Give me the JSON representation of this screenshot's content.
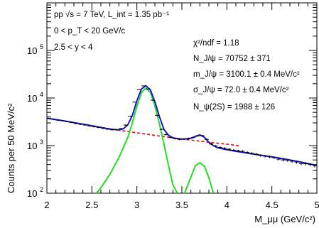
{
  "chart_data": {
    "type": "line",
    "xlabel": "M_μμ (GeV/c²)",
    "ylabel": "Counts per 50 MeV/c²",
    "xlim": [
      2,
      5
    ],
    "ylim": [
      100,
      1000000
    ],
    "y_scale": "log",
    "x_ticks": [
      "2",
      "2.5",
      "3",
      "3.5",
      "4",
      "4.5",
      "5"
    ],
    "y_tick_exponents": [
      "2",
      "3",
      "4",
      "5"
    ],
    "legend_text": {
      "line1": "pp √s = 7 TeV, L_int = 1.35 pb⁻¹",
      "line2": "0 < p_T < 20 GeV/c",
      "line3": "2.5 < y < 4"
    },
    "fit_results": {
      "chi2": "χ²/ndf = 1.18",
      "njpsi": "N_J/ψ = 70752 ± 371",
      "mjpsi": "m_J/ψ = 3100.1 ± 0.4 MeV/c²",
      "sigma": "σ_J/ψ = 72.0 ± 0.4 MeV/c²",
      "npsi2s": "N_ψ(2S) = 1988 ± 126"
    },
    "series": [
      {
        "key": "data",
        "color": "#000000",
        "x": [
          2.025,
          2.075,
          2.125,
          2.175,
          2.225,
          2.275,
          2.325,
          2.375,
          2.425,
          2.475,
          2.525,
          2.575,
          2.625,
          2.675,
          2.725,
          2.775,
          2.825,
          2.875,
          2.925,
          2.975,
          3.025,
          3.075,
          3.125,
          3.175,
          3.225,
          3.275,
          3.325,
          3.375,
          3.425,
          3.475,
          3.525,
          3.575,
          3.625,
          3.675,
          3.725,
          3.775,
          3.825,
          3.875,
          3.925,
          3.975,
          4.025,
          4.075,
          4.125,
          4.175,
          4.225,
          4.275,
          4.325,
          4.375,
          4.425,
          4.475,
          4.525,
          4.575,
          4.625,
          4.675,
          4.725,
          4.775,
          4.825,
          4.875,
          4.925,
          4.975
        ],
        "y": [
          3720,
          3600,
          3420,
          3330,
          3180,
          3060,
          2900,
          2800,
          2700,
          2580,
          2480,
          2400,
          2300,
          2220,
          2150,
          2160,
          2280,
          2700,
          4100,
          8200,
          15000,
          18000,
          15500,
          9000,
          4300,
          2200,
          1700,
          1480,
          1400,
          1350,
          1380,
          1420,
          1480,
          1600,
          1620,
          1350,
          1080,
          980,
          920,
          880,
          840,
          800,
          780,
          760,
          720,
          690,
          660,
          620,
          600,
          580,
          560,
          520,
          500,
          490,
          470,
          450,
          420,
          415,
          400,
          380
        ]
      },
      {
        "key": "fit",
        "color": "#1a1acc",
        "x": [
          2.0,
          2.1,
          2.2,
          2.3,
          2.4,
          2.5,
          2.6,
          2.7,
          2.8,
          2.85,
          2.9,
          2.95,
          3.0,
          3.05,
          3.1,
          3.15,
          3.2,
          3.25,
          3.3,
          3.35,
          3.4,
          3.45,
          3.5,
          3.55,
          3.6,
          3.65,
          3.7,
          3.75,
          3.8,
          3.85,
          3.9,
          4.0,
          4.1,
          4.2,
          4.3,
          4.4,
          4.5,
          4.6,
          4.7,
          4.8,
          4.9,
          5.0
        ],
        "y": [
          3750,
          3520,
          3280,
          3050,
          2830,
          2620,
          2420,
          2230,
          2140,
          2260,
          2750,
          4300,
          8800,
          15400,
          18200,
          14800,
          8400,
          4100,
          2200,
          1650,
          1460,
          1400,
          1370,
          1380,
          1430,
          1560,
          1680,
          1500,
          1180,
          1000,
          900,
          820,
          760,
          710,
          660,
          620,
          580,
          540,
          500,
          460,
          420,
          385
        ]
      },
      {
        "key": "background",
        "color": "#ee0000",
        "x": [
          2.35,
          2.5,
          2.75,
          3.0,
          3.25,
          3.5,
          3.75,
          4.0,
          4.15
        ],
        "y": [
          2920,
          2600,
          2180,
          1860,
          1590,
          1380,
          1210,
          1070,
          990
        ]
      },
      {
        "key": "jpsi",
        "color": "#22dd22",
        "x": [
          2.55,
          2.6,
          2.7,
          2.8,
          2.9,
          2.95,
          3.0,
          3.05,
          3.1,
          3.15,
          3.2,
          3.25,
          3.3,
          3.35,
          3.4,
          3.45
        ],
        "y": [
          100,
          130,
          250,
          560,
          1500,
          3000,
          6800,
          13000,
          16200,
          13200,
          6800,
          2900,
          1100,
          390,
          150,
          100
        ]
      },
      {
        "key": "psi2s",
        "color": "#22dd22",
        "x": [
          3.53,
          3.6,
          3.65,
          3.7,
          3.75,
          3.8,
          3.85
        ],
        "y": [
          100,
          220,
          380,
          440,
          370,
          210,
          100
        ]
      }
    ]
  }
}
